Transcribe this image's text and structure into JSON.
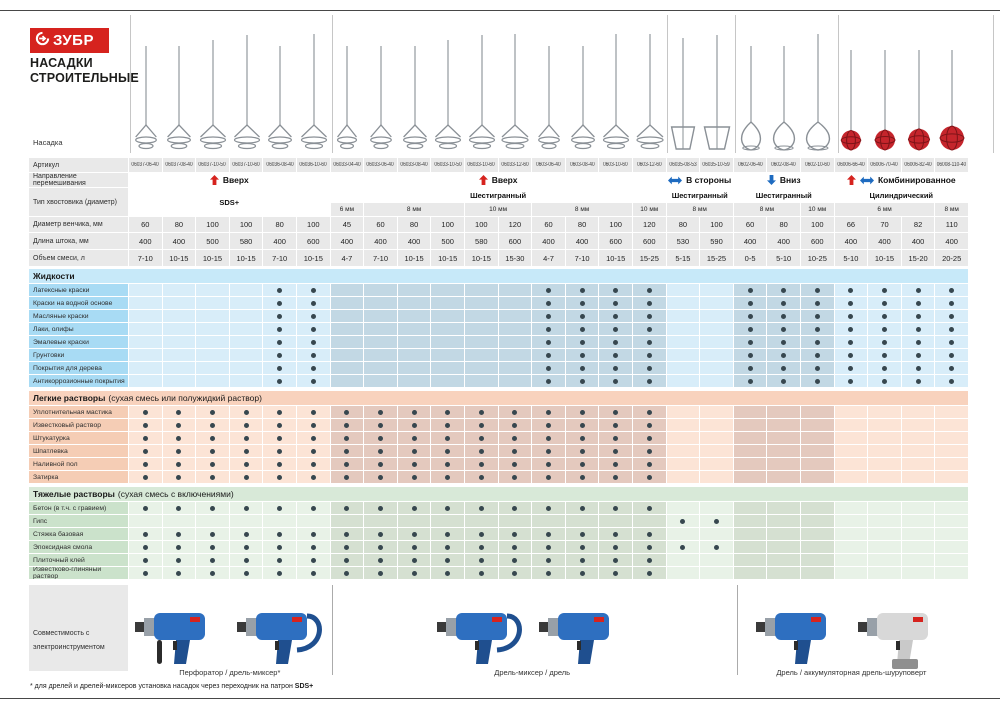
{
  "brand": {
    "logo_text": "ЗУБР",
    "title_line1": "НАСАДКИ",
    "title_line2": "СТРОИТЕЛЬНЫЕ"
  },
  "row_labels": {
    "nozzle": "Насадка",
    "article": "Артикул",
    "direction": "Направление перемешивания",
    "shank": "Тип хвостовика (диаметр)",
    "diameter": "Диаметр венчика, мм",
    "length": "Длина штока, мм",
    "volume": "Объем смеси, л",
    "compatibility": "Совместимость с электроинструментом"
  },
  "colors": {
    "brand_red": "#d6231e",
    "arrow_blue": "#1e6bc0",
    "dot": "#37474f",
    "header_cell": "#e9e9e9",
    "steel": "#8a9096",
    "paddle_red": "#c5252c",
    "themes": {
      "blue": {
        "band": "#c7e9f9",
        "label": "#a8dbf4",
        "light": "#d8edf9",
        "dark": "#c2d8e4"
      },
      "peach": {
        "band": "#f8d2bd",
        "label": "#f5cdb5",
        "light": "#fce4d6",
        "dark": "#e4c9be"
      },
      "green": {
        "band": "#d8e9d8",
        "label": "#cbe2cb",
        "light": "#e8f2e7",
        "dark": "#d5e0d1"
      }
    }
  },
  "groups": [
    {
      "direction": "Вверх",
      "arrows": [
        "up"
      ],
      "shank": "SDS+",
      "shank_full": true,
      "sizes": [],
      "shade": "light",
      "paddle": "helix",
      "columns": [
        {
          "article": "06037-06-40",
          "diameter": "60",
          "length": "400",
          "volume": "7-10"
        },
        {
          "article": "06037-08-40",
          "diameter": "80",
          "length": "400",
          "volume": "10-15"
        },
        {
          "article": "06037-10-50",
          "diameter": "100",
          "length": "500",
          "volume": "10-15"
        },
        {
          "article": "06037-10-60",
          "diameter": "100",
          "length": "580",
          "volume": "10-15"
        },
        {
          "article": "06036-08-40",
          "diameter": "80",
          "length": "400",
          "volume": "7-10"
        },
        {
          "article": "06036-10-60",
          "diameter": "100",
          "length": "600",
          "volume": "10-15"
        }
      ]
    },
    {
      "direction": "Вверх",
      "arrows": [
        "up"
      ],
      "shank": "Шестигранный",
      "shank_full": false,
      "sizes": [
        [
          "6 мм",
          1
        ],
        [
          "8 мм",
          3
        ],
        [
          "10 мм",
          2
        ],
        [
          "8 мм",
          3
        ],
        [
          "10 мм",
          1
        ]
      ],
      "shade": "dark",
      "paddle": "helix",
      "columns": [
        {
          "article": "06033-04-40",
          "diameter": "45",
          "length": "400",
          "volume": "4-7"
        },
        {
          "article": "06033-06-40",
          "diameter": "60",
          "length": "400",
          "volume": "7-10"
        },
        {
          "article": "06033-08-40",
          "diameter": "80",
          "length": "400",
          "volume": "10-15"
        },
        {
          "article": "06033-10-50",
          "diameter": "100",
          "length": "500",
          "volume": "10-15"
        },
        {
          "article": "06033-10-60",
          "diameter": "100",
          "length": "580",
          "volume": "10-15"
        },
        {
          "article": "06033-12-60",
          "diameter": "120",
          "length": "600",
          "volume": "15-30"
        },
        {
          "article": "0603-06-40",
          "diameter": "60",
          "length": "400",
          "volume": "4-7"
        },
        {
          "article": "0603-08-40",
          "diameter": "80",
          "length": "400",
          "volume": "7-10"
        },
        {
          "article": "0603-10-60",
          "diameter": "100",
          "length": "600",
          "volume": "10-15"
        },
        {
          "article": "0603-12-60",
          "diameter": "120",
          "length": "600",
          "volume": "15-25"
        }
      ]
    },
    {
      "direction": "В стороны",
      "arrows": [
        "lr"
      ],
      "shank": "Шестигранный",
      "shank_full": false,
      "sizes": [
        [
          "8 мм",
          2
        ]
      ],
      "shade": "light",
      "paddle": "cage",
      "columns": [
        {
          "article": "06035-08-53",
          "diameter": "80",
          "length": "530",
          "volume": "5-15"
        },
        {
          "article": "06035-10-59",
          "diameter": "100",
          "length": "590",
          "volume": "15-25"
        }
      ]
    },
    {
      "direction": "Вниз",
      "arrows": [
        "down"
      ],
      "shank": "Шестигранный",
      "shank_full": false,
      "sizes": [
        [
          "8 мм",
          2
        ],
        [
          "10 мм",
          1
        ]
      ],
      "shade": "dark",
      "paddle": "teardrop",
      "columns": [
        {
          "article": "0602-06-40",
          "diameter": "60",
          "length": "400",
          "volume": "0-5"
        },
        {
          "article": "0602-08-40",
          "diameter": "80",
          "length": "400",
          "volume": "5-10"
        },
        {
          "article": "0602-10-60",
          "diameter": "100",
          "length": "600",
          "volume": "10-25"
        }
      ]
    },
    {
      "direction": "Комбинированное",
      "arrows": [
        "up",
        "lr"
      ],
      "shank": "Цилиндрический",
      "shank_full": false,
      "sizes": [
        [
          "6 мм",
          3
        ],
        [
          "8 мм",
          1
        ]
      ],
      "shade": "light",
      "paddle": "ball",
      "columns": [
        {
          "article": "06006-66-40",
          "diameter": "66",
          "length": "400",
          "volume": "5-10"
        },
        {
          "article": "06006-70-40",
          "diameter": "70",
          "length": "400",
          "volume": "10-15"
        },
        {
          "article": "06006-82-40",
          "diameter": "82",
          "length": "400",
          "volume": "15-20"
        },
        {
          "article": "06008-110-40",
          "diameter": "110",
          "length": "400",
          "volume": "20-25"
        }
      ]
    }
  ],
  "sections": [
    {
      "title": "Жидкости",
      "subtitle": "",
      "theme": "blue",
      "rows": [
        {
          "label": "Латексные краски",
          "dots": [
            5,
            6,
            13,
            14,
            15,
            16,
            19,
            20,
            21,
            22,
            23,
            24,
            25
          ]
        },
        {
          "label": "Краски на водной основе",
          "dots": [
            5,
            6,
            13,
            14,
            15,
            16,
            19,
            20,
            21,
            22,
            23,
            24,
            25
          ]
        },
        {
          "label": "Масляные краски",
          "dots": [
            5,
            6,
            13,
            14,
            15,
            16,
            19,
            20,
            21,
            22,
            23,
            24,
            25
          ]
        },
        {
          "label": "Лаки, олифы",
          "dots": [
            5,
            6,
            13,
            14,
            15,
            16,
            19,
            20,
            21,
            22,
            23,
            24,
            25
          ]
        },
        {
          "label": "Эмалевые краски",
          "dots": [
            5,
            6,
            13,
            14,
            15,
            16,
            19,
            20,
            21,
            22,
            23,
            24,
            25
          ]
        },
        {
          "label": "Грунтовки",
          "dots": [
            5,
            6,
            13,
            14,
            15,
            16,
            19,
            20,
            21,
            22,
            23,
            24,
            25
          ]
        },
        {
          "label": "Покрытия для дерева",
          "dots": [
            5,
            6,
            13,
            14,
            15,
            16,
            19,
            20,
            21,
            22,
            23,
            24,
            25
          ]
        },
        {
          "label": "Антикоррозионные покрытия",
          "dots": [
            5,
            6,
            13,
            14,
            15,
            16,
            19,
            20,
            21,
            22,
            23,
            24,
            25
          ]
        }
      ]
    },
    {
      "title": "Легкие растворы",
      "subtitle": "(сухая смесь или полужидкий раствор)",
      "theme": "peach",
      "rows": [
        {
          "label": "Уплотнительная мастика",
          "dots": [
            1,
            2,
            3,
            4,
            5,
            6,
            7,
            8,
            9,
            10,
            11,
            12,
            13,
            14,
            15,
            16
          ]
        },
        {
          "label": "Известковый раствор",
          "dots": [
            1,
            2,
            3,
            4,
            5,
            6,
            7,
            8,
            9,
            10,
            11,
            12,
            13,
            14,
            15,
            16
          ]
        },
        {
          "label": "Штукатурка",
          "dots": [
            1,
            2,
            3,
            4,
            5,
            6,
            7,
            8,
            9,
            10,
            11,
            12,
            13,
            14,
            15,
            16
          ]
        },
        {
          "label": "Шпатлевка",
          "dots": [
            1,
            2,
            3,
            4,
            5,
            6,
            7,
            8,
            9,
            10,
            11,
            12,
            13,
            14,
            15,
            16
          ]
        },
        {
          "label": "Наливной пол",
          "dots": [
            1,
            2,
            3,
            4,
            5,
            6,
            7,
            8,
            9,
            10,
            11,
            12,
            13,
            14,
            15,
            16
          ]
        },
        {
          "label": "Затирка",
          "dots": [
            1,
            2,
            3,
            4,
            5,
            6,
            7,
            8,
            9,
            10,
            11,
            12,
            13,
            14,
            15,
            16
          ]
        }
      ]
    },
    {
      "title": "Тяжелые растворы",
      "subtitle": "(сухая смесь с включениями)",
      "theme": "green",
      "rows": [
        {
          "label": "Бетон (в т.ч. с гравием)",
          "dots": [
            1,
            2,
            3,
            4,
            5,
            6,
            7,
            8,
            9,
            10,
            11,
            12,
            13,
            14,
            15,
            16
          ]
        },
        {
          "label": "Гипс",
          "dots": [
            17,
            18
          ]
        },
        {
          "label": "Стяжка базовая",
          "dots": [
            1,
            2,
            3,
            4,
            5,
            6,
            7,
            8,
            9,
            10,
            11,
            12,
            13,
            14,
            15,
            16
          ]
        },
        {
          "label": "Эпоксидная смола",
          "dots": [
            1,
            2,
            3,
            4,
            5,
            6,
            7,
            8,
            9,
            10,
            11,
            12,
            13,
            14,
            15,
            16,
            17,
            18
          ]
        },
        {
          "label": "Плиточный клей",
          "dots": [
            1,
            2,
            3,
            4,
            5,
            6,
            7,
            8,
            9,
            10,
            11,
            12,
            13,
            14,
            15,
            16
          ]
        },
        {
          "label": "Известково-глиняный раствор",
          "dots": [
            1,
            2,
            3,
            4,
            5,
            6,
            7,
            8,
            9,
            10,
            11,
            12,
            13,
            14,
            15,
            16
          ]
        }
      ]
    }
  ],
  "tools": {
    "groups": [
      {
        "label": "Перфоратор / дрель-миксер*",
        "images": [
          "rotary-hammer",
          "drill-mixer"
        ],
        "span": [
          1,
          6
        ]
      },
      {
        "label": "Дрель-миксер / дрель",
        "images": [
          "drill-mixer",
          "drill"
        ],
        "span": [
          7,
          18
        ]
      },
      {
        "label": "Дрель / аккумуляторная дрель-шуруповерт",
        "images": [
          "drill",
          "cordless-screwdriver"
        ],
        "span": [
          19,
          25
        ]
      }
    ]
  },
  "footnote": {
    "text": "* для дрелей и дрелей-миксеров установка насадок через переходник на патрон ",
    "bold": "SDS+"
  }
}
